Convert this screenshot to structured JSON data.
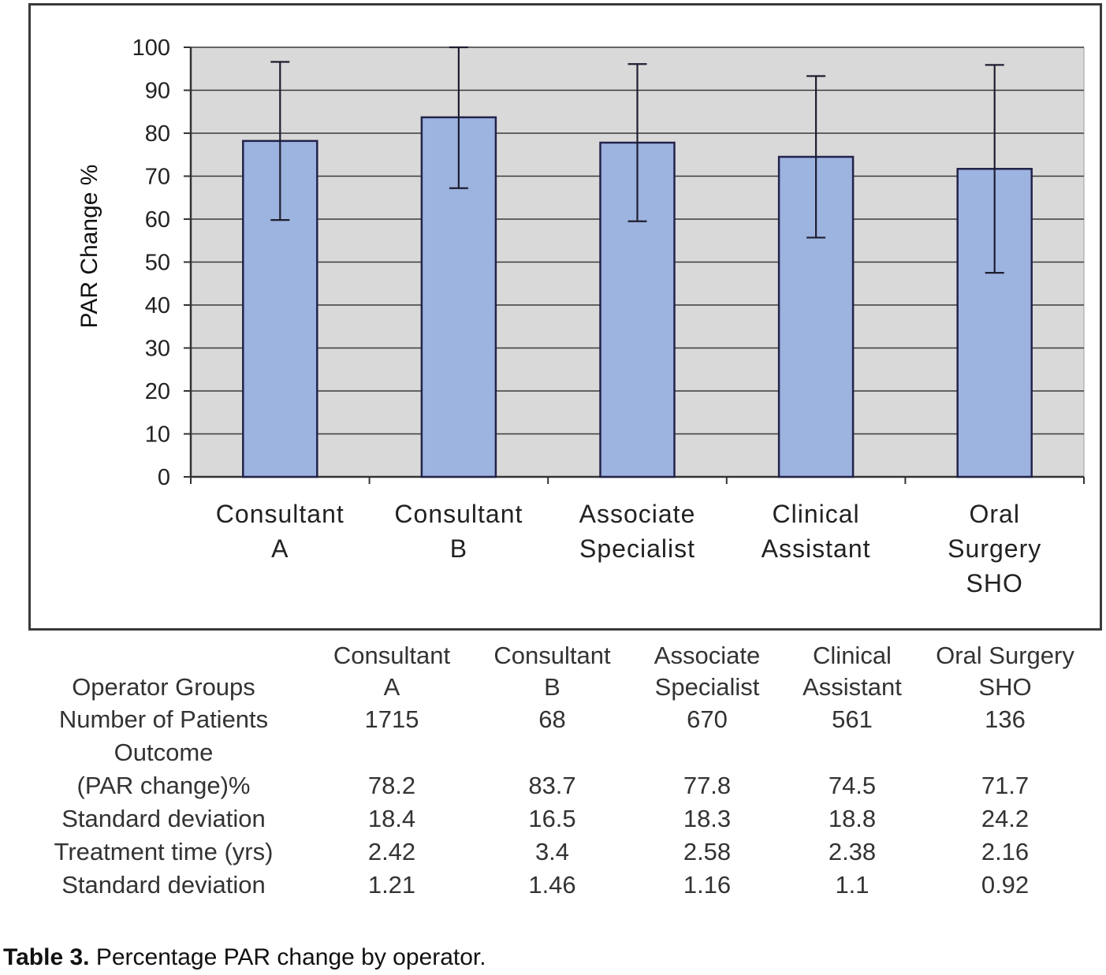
{
  "chart_data": {
    "type": "bar",
    "ylabel": "PAR Change %",
    "ylim": [
      0,
      100
    ],
    "yticks": [
      0,
      10,
      20,
      30,
      40,
      50,
      60,
      70,
      80,
      90,
      100
    ],
    "categories": [
      "Consultant\nA",
      "Consultant\nB",
      "Associate\nSpecialist",
      "Clinical\nAssistant",
      "Oral\nSurgery\nSHO"
    ],
    "values": [
      78.2,
      83.7,
      77.8,
      74.5,
      71.7
    ],
    "error": [
      18.4,
      16.5,
      18.3,
      18.8,
      24.2
    ],
    "grid": true,
    "legend": "none",
    "colors": {
      "bar_fill": "#9db3e0",
      "bar_stroke": "#23234a",
      "plot_bg": "#d9d9d9",
      "grid": "#3a3a3a"
    }
  },
  "table": {
    "header_label": "Operator Groups",
    "columns": [
      "Consultant\nA",
      "Consultant\nB",
      "Associate\nSpecialist",
      "Clinical\nAssistant",
      "Oral Surgery\nSHO"
    ],
    "rows": [
      {
        "label": "Number of Patients",
        "values": [
          "1715",
          "68",
          "670",
          "561",
          "136"
        ]
      },
      {
        "label": "Outcome\n(PAR change)%",
        "values": [
          "78.2",
          "83.7",
          "77.8",
          "74.5",
          "71.7"
        ]
      },
      {
        "label": "Standard deviation",
        "values": [
          "18.4",
          "16.5",
          "18.3",
          "18.8",
          "24.2"
        ]
      },
      {
        "label": "Treatment time (yrs)",
        "values": [
          "2.42",
          "3.4",
          "2.58",
          "2.38",
          "2.16"
        ]
      },
      {
        "label": "Standard deviation",
        "values": [
          "1.21",
          "1.46",
          "1.16",
          "1.1",
          "0.92"
        ]
      }
    ]
  },
  "caption": {
    "label": "Table 3.",
    "text": "Percentage PAR change by operator."
  }
}
